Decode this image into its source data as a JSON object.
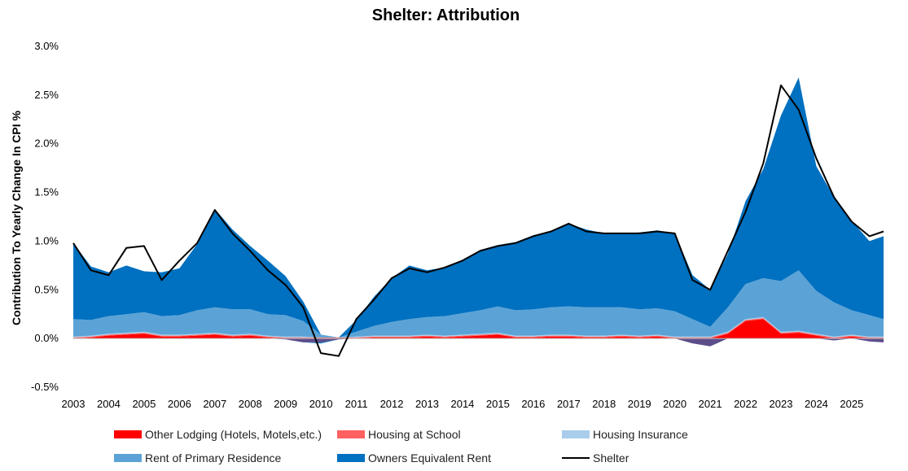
{
  "title": "Shelter: Attribution",
  "colors": {
    "other_lodging": "#ff0000",
    "school": "#ff6060",
    "insurance": "#a9cdeb",
    "rent": "#5ba3d6",
    "oer": "#0070c0",
    "shelter": "#000000",
    "negative": "#5c4d8a"
  },
  "chart_data": {
    "type": "area",
    "title": "Shelter: Attribution",
    "ylabel": "Contribution To Yearly Change In CPI %",
    "xlabel": "",
    "ylim": [
      -0.5,
      3.0
    ],
    "xlim": [
      2003.0,
      2025.9
    ],
    "y_ticks": [
      "-0.5%",
      "0.0%",
      "0.5%",
      "1.0%",
      "1.5%",
      "2.0%",
      "2.5%",
      "3.0%"
    ],
    "y_tick_values": [
      -0.5,
      0,
      0.5,
      1.0,
      1.5,
      2.0,
      2.5,
      3.0
    ],
    "x_ticks": [
      "2003",
      "2004",
      "2005",
      "2006",
      "2007",
      "2008",
      "2009",
      "2010",
      "2011",
      "2012",
      "2013",
      "2014",
      "2015",
      "2016",
      "2017",
      "2018",
      "2019",
      "2020",
      "2021",
      "2022",
      "2023",
      "2024",
      "2025"
    ],
    "x": [
      2003.0,
      2003.5,
      2004.0,
      2004.5,
      2005.0,
      2005.5,
      2006.0,
      2006.5,
      2007.0,
      2007.5,
      2008.0,
      2008.5,
      2009.0,
      2009.5,
      2010.0,
      2010.5,
      2011.0,
      2011.5,
      2012.0,
      2012.5,
      2013.0,
      2013.5,
      2014.0,
      2014.5,
      2015.0,
      2015.5,
      2016.0,
      2016.5,
      2017.0,
      2017.5,
      2018.0,
      2018.5,
      2019.0,
      2019.5,
      2020.0,
      2020.5,
      2021.0,
      2021.5,
      2022.0,
      2022.5,
      2023.0,
      2023.5,
      2024.0,
      2024.5,
      2025.0,
      2025.5,
      2025.9
    ],
    "series": [
      {
        "name": "Other Lodging (Hotels, Motels,etc.)",
        "key": "other_lodging",
        "values": [
          0.0,
          0.01,
          0.03,
          0.04,
          0.05,
          0.02,
          0.02,
          0.03,
          0.04,
          0.02,
          0.03,
          0.01,
          -0.01,
          -0.04,
          -0.04,
          -0.01,
          0.0,
          0.01,
          0.01,
          0.01,
          0.02,
          0.01,
          0.02,
          0.03,
          0.04,
          0.01,
          0.01,
          0.02,
          0.02,
          0.01,
          0.01,
          0.02,
          0.01,
          0.02,
          0.0,
          -0.05,
          -0.08,
          0.05,
          0.18,
          0.2,
          0.05,
          0.06,
          0.03,
          -0.02,
          0.02,
          -0.03,
          -0.04
        ]
      },
      {
        "name": "Housing at School",
        "key": "school",
        "values": [
          0.01,
          0.01,
          0.01,
          0.01,
          0.01,
          0.01,
          0.01,
          0.01,
          0.01,
          0.01,
          0.01,
          0.01,
          0.01,
          0.01,
          0.01,
          0.01,
          0.01,
          0.01,
          0.01,
          0.01,
          0.01,
          0.01,
          0.01,
          0.01,
          0.01,
          0.01,
          0.01,
          0.01,
          0.01,
          0.01,
          0.01,
          0.01,
          0.01,
          0.01,
          0.01,
          0.01,
          0.01,
          0.01,
          0.01,
          0.01,
          0.01,
          0.01,
          0.01,
          0.01,
          0.01,
          0.01,
          0.01
        ]
      },
      {
        "name": "Housing Insurance",
        "key": "insurance",
        "values": [
          0.01,
          0.01,
          0.01,
          0.01,
          0.01,
          0.01,
          0.01,
          0.01,
          0.01,
          0.01,
          0.01,
          0.01,
          0.01,
          0.01,
          0.0,
          0.0,
          0.01,
          0.01,
          0.01,
          0.01,
          0.01,
          0.01,
          0.01,
          0.01,
          0.01,
          0.01,
          0.01,
          0.01,
          0.01,
          0.01,
          0.01,
          0.01,
          0.01,
          0.01,
          0.01,
          0.01,
          0.01,
          0.01,
          0.01,
          0.01,
          0.01,
          0.01,
          0.01,
          0.01,
          0.01,
          0.01,
          0.01
        ]
      },
      {
        "name": "Rent of Primary Residence",
        "key": "rent",
        "values": [
          0.18,
          0.16,
          0.18,
          0.19,
          0.2,
          0.19,
          0.2,
          0.24,
          0.26,
          0.26,
          0.25,
          0.22,
          0.22,
          0.16,
          0.03,
          0.0,
          0.05,
          0.1,
          0.14,
          0.17,
          0.18,
          0.2,
          0.22,
          0.24,
          0.27,
          0.26,
          0.27,
          0.28,
          0.29,
          0.29,
          0.29,
          0.28,
          0.27,
          0.27,
          0.26,
          0.18,
          0.1,
          0.25,
          0.36,
          0.4,
          0.52,
          0.62,
          0.44,
          0.35,
          0.25,
          0.22,
          0.18
        ]
      },
      {
        "name": "Owners Equivalent Rent",
        "key": "oer",
        "values": [
          0.78,
          0.55,
          0.45,
          0.5,
          0.42,
          0.45,
          0.48,
          0.68,
          1.01,
          0.82,
          0.65,
          0.55,
          0.4,
          0.2,
          -0.01,
          0.0,
          0.12,
          0.3,
          0.45,
          0.55,
          0.48,
          0.5,
          0.55,
          0.62,
          0.63,
          0.7,
          0.76,
          0.78,
          0.85,
          0.8,
          0.76,
          0.76,
          0.79,
          0.8,
          0.8,
          0.45,
          0.38,
          0.55,
          0.85,
          1.12,
          1.7,
          1.98,
          1.28,
          1.08,
          0.92,
          0.76,
          0.85
        ]
      },
      {
        "name": "Shelter",
        "key": "shelter",
        "values": [
          0.98,
          0.7,
          0.65,
          0.93,
          0.95,
          0.6,
          0.8,
          0.98,
          1.32,
          1.08,
          0.9,
          0.7,
          0.55,
          0.32,
          -0.15,
          -0.18,
          0.2,
          0.4,
          0.62,
          0.72,
          0.68,
          0.73,
          0.8,
          0.9,
          0.95,
          0.98,
          1.05,
          1.1,
          1.18,
          1.1,
          1.08,
          1.08,
          1.08,
          1.1,
          1.08,
          0.6,
          0.5,
          0.9,
          1.3,
          1.8,
          2.6,
          2.35,
          1.85,
          1.45,
          1.2,
          1.05,
          1.1
        ]
      }
    ]
  },
  "legend": [
    {
      "label": "Other Lodging (Hotels, Motels,etc.)",
      "key": "other_lodging",
      "kind": "area"
    },
    {
      "label": "Housing at School",
      "key": "school",
      "kind": "area"
    },
    {
      "label": "Housing Insurance",
      "key": "insurance",
      "kind": "area"
    },
    {
      "label": "Rent of Primary Residence",
      "key": "rent",
      "kind": "area"
    },
    {
      "label": "Owners Equivalent Rent",
      "key": "oer",
      "kind": "area"
    },
    {
      "label": "Shelter",
      "key": "shelter",
      "kind": "line"
    }
  ]
}
